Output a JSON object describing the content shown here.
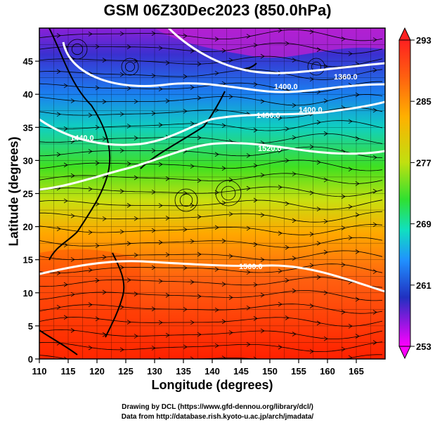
{
  "title": "GSM 06Z30Dec2023 (850.0hPa)",
  "xlabel": "Longitude (degrees)",
  "ylabel": "Latitude  (degrees)",
  "x_ticks": [
    "110",
    "115",
    "120",
    "125",
    "130",
    "135",
    "140",
    "145",
    "150",
    "155",
    "160",
    "165"
  ],
  "y_ticks": [
    "0",
    "5",
    "10",
    "15",
    "20",
    "25",
    "30",
    "35",
    "40",
    "45"
  ],
  "colorbar_ticks": [
    "293",
    "285",
    "277",
    "269",
    "261",
    "253"
  ],
  "contour_labels": [
    "1360.0",
    "1400.0",
    "1480.0",
    "1520.0",
    "1440.0",
    "1560.0",
    "1400.0"
  ],
  "credits": [
    "Drawing by DCL (https://www.gfd-dennou.org/library/dcl/)",
    "Data from http://database.rish.kyoto-u.ac.jp/arch/jmadata/"
  ],
  "map_data": {
    "type": "heatmap",
    "variable": "temperature with geopotential height contours and streamlines",
    "lon_range": [
      110,
      170
    ],
    "lat_range": [
      0,
      50
    ],
    "colorbar_range": [
      253,
      293
    ],
    "colormap": [
      "#ff00ff",
      "#3030d0",
      "#2090ff",
      "#10e0c0",
      "#30e030",
      "#c8e010",
      "#ffb000",
      "#ff5010",
      "#ff0000"
    ]
  }
}
